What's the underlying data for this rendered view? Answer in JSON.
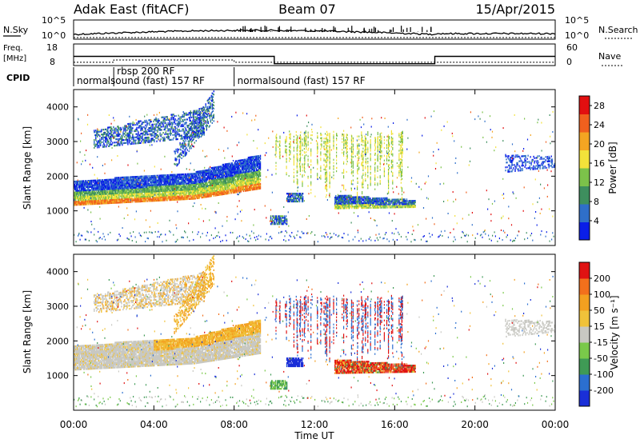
{
  "header": {
    "radar": "Adak East (fitACF)",
    "beam": "Beam 07",
    "date": "15/Apr/2015"
  },
  "chart_data": [
    {
      "type": "line",
      "panel": "noise",
      "left_label": "N.Sky",
      "right_label": "N.Search",
      "left_ticks": [
        "10^5",
        "10^0"
      ],
      "right_ticks": [
        "10^5",
        "10^0"
      ],
      "note": "noise level trace across the day"
    },
    {
      "type": "line",
      "panel": "frequency",
      "left_label_lines": [
        "Freq.",
        "[MHz]"
      ],
      "left_ticks": [
        18,
        8
      ],
      "right_label": "Nave",
      "right_ticks": [
        60,
        0
      ],
      "freq_segments": [
        {
          "x": [
            0.0,
            10.0
          ],
          "y": 13
        },
        {
          "x": [
            10.0,
            18.0
          ],
          "y": 9
        },
        {
          "x": [
            18.0,
            24.0
          ],
          "y": 13
        }
      ],
      "nave_segments": [
        {
          "x": [
            0.0,
            2.0
          ],
          "y": 5
        },
        {
          "x": [
            2.0,
            8.0
          ],
          "y": 12
        },
        {
          "x": [
            8.0,
            24.0
          ],
          "y": 5
        }
      ]
    },
    {
      "type": "table",
      "panel": "cpid",
      "label": "CPID",
      "programs": [
        {
          "name": "normalsound (fast) 157 RF",
          "start": 0.0,
          "row": 2
        },
        {
          "name": "rbsp 200 RF",
          "start": 2.0,
          "row": 1
        },
        {
          "name": "normalsound (fast) 157 RF",
          "start": 8.0,
          "row": 2
        }
      ],
      "switch_times": [
        0.0,
        2.0,
        8.0
      ]
    },
    {
      "type": "heatmap",
      "panel": "power",
      "ylabel": "Slant Range [km]",
      "y_ticks": [
        1000,
        2000,
        3000,
        4000
      ],
      "ylim": [
        0,
        4500
      ],
      "colorbar_label": "Power [dB]",
      "colorbar_ticks": [
        4,
        8,
        12,
        16,
        20,
        24,
        28
      ],
      "colorbar_range": [
        0,
        30
      ],
      "colors": [
        "#0a1ee8",
        "#2f6fc9",
        "#3e8f5e",
        "#7cc24a",
        "#f3e23a",
        "#f4a522",
        "#f0601e",
        "#e20f10"
      ]
    },
    {
      "type": "heatmap",
      "panel": "velocity",
      "ylabel": "Slant Range [km]",
      "y_ticks": [
        1000,
        2000,
        3000,
        4000
      ],
      "ylim": [
        0,
        4500
      ],
      "xlabel": "Time UT",
      "x_ticks": [
        "00:00",
        "04:00",
        "08:00",
        "12:00",
        "16:00",
        "20:00",
        "00:00"
      ],
      "xlim": [
        0,
        24
      ],
      "colorbar_label": "Velocity [m s⁻¹]",
      "colorbar_ticks": [
        "200",
        "100",
        "50",
        "15",
        "-15",
        "-50",
        "-100",
        "-200"
      ],
      "colors": [
        "#1a2fd8",
        "#2b6fd0",
        "#3f9a55",
        "#7ac94a",
        "#c8c8c2",
        "#f0c23a",
        "#f3a020",
        "#f2701c",
        "#e01212"
      ]
    }
  ]
}
